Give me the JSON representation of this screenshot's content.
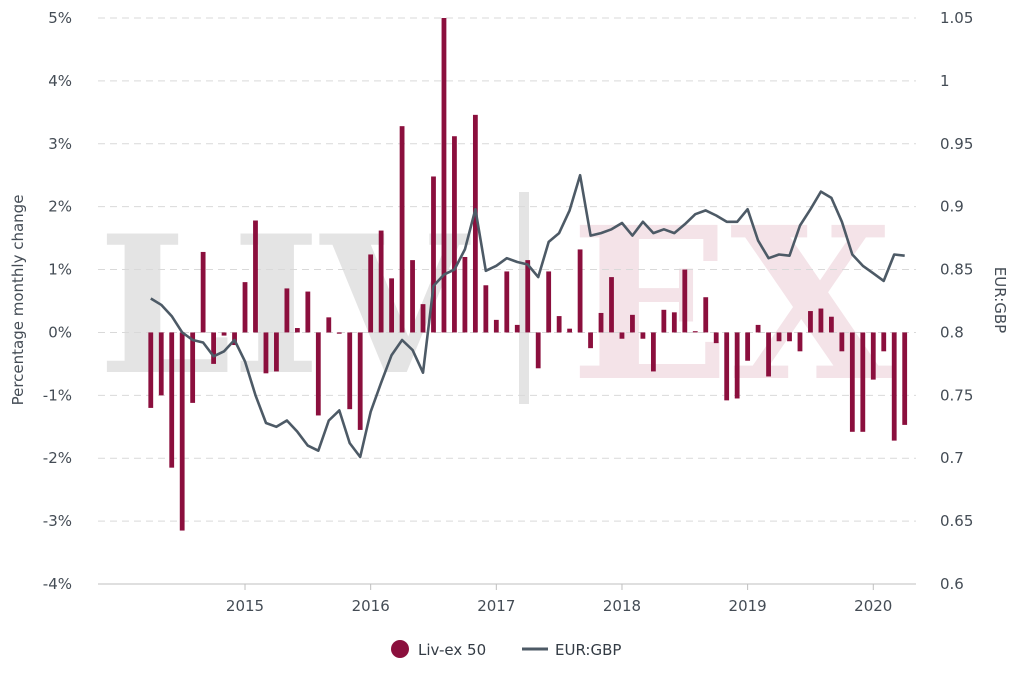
{
  "watermark": {
    "left": "LIV",
    "right": "EX"
  },
  "chart_data": {
    "type": "bar+line",
    "y_left_label": "Percentage monthly change",
    "y_right_label": "EUR:GBP",
    "y_left_ticks": [
      "5%",
      "4%",
      "3%",
      "2%",
      "1%",
      "0%",
      "-1%",
      "-2%",
      "-3%",
      "-4%"
    ],
    "y_left_range": [
      -4,
      5
    ],
    "y_right_ticks": [
      "1.05",
      "1",
      "0.95",
      "0.9",
      "0.85",
      "0.8",
      "0.75",
      "0.7",
      "0.65",
      "0.6"
    ],
    "y_right_range": [
      0.6,
      1.05
    ],
    "x_ticks": [
      {
        "label": "2015",
        "value": 2015.0
      },
      {
        "label": "2016",
        "value": 2016.0
      },
      {
        "label": "2017",
        "value": 2017.0
      },
      {
        "label": "2018",
        "value": 2018.0
      },
      {
        "label": "2019",
        "value": 2019.0
      },
      {
        "label": "2020",
        "value": 2020.0
      }
    ],
    "x_range": [
      2013.83,
      2020.34
    ],
    "grid": "horizontal dashed",
    "legend_position": "bottom-center",
    "colors": {
      "bar": "#8b0f3d",
      "line": "#4d5a66",
      "grid": "#d9d9d9",
      "watermark_left": "#e4e4e4",
      "watermark_right": "#f4e3e8"
    },
    "series": [
      {
        "name": "Liv-ex 50",
        "type": "bar",
        "points": [
          {
            "x": "2014-04",
            "y": -1.2
          },
          {
            "x": "2014-05",
            "y": -1.0
          },
          {
            "x": "2014-06",
            "y": -2.15
          },
          {
            "x": "2014-07",
            "y": -3.15
          },
          {
            "x": "2014-08",
            "y": -1.12
          },
          {
            "x": "2014-09",
            "y": 1.28
          },
          {
            "x": "2014-10",
            "y": -0.5
          },
          {
            "x": "2014-11",
            "y": -0.05
          },
          {
            "x": "2014-12",
            "y": -0.2
          },
          {
            "x": "2015-01",
            "y": 0.8
          },
          {
            "x": "2015-02",
            "y": 1.78
          },
          {
            "x": "2015-03",
            "y": -0.65
          },
          {
            "x": "2015-04",
            "y": -0.62
          },
          {
            "x": "2015-05",
            "y": 0.7
          },
          {
            "x": "2015-06",
            "y": 0.07
          },
          {
            "x": "2015-07",
            "y": 0.65
          },
          {
            "x": "2015-08",
            "y": -1.32
          },
          {
            "x": "2015-09",
            "y": 0.24
          },
          {
            "x": "2015-10",
            "y": -0.02
          },
          {
            "x": "2015-11",
            "y": -1.22
          },
          {
            "x": "2015-12",
            "y": -1.55
          },
          {
            "x": "2016-01",
            "y": 1.24
          },
          {
            "x": "2016-02",
            "y": 1.62
          },
          {
            "x": "2016-03",
            "y": 0.86
          },
          {
            "x": "2016-04",
            "y": 3.28
          },
          {
            "x": "2016-05",
            "y": 1.15
          },
          {
            "x": "2016-06",
            "y": 0.45
          },
          {
            "x": "2016-07",
            "y": 2.48
          },
          {
            "x": "2016-08",
            "y": 5.0
          },
          {
            "x": "2016-09",
            "y": 3.12
          },
          {
            "x": "2016-10",
            "y": 1.2
          },
          {
            "x": "2016-11",
            "y": 3.46
          },
          {
            "x": "2016-12",
            "y": 0.75
          },
          {
            "x": "2017-01",
            "y": 0.2
          },
          {
            "x": "2017-02",
            "y": 0.97
          },
          {
            "x": "2017-03",
            "y": 0.12
          },
          {
            "x": "2017-04",
            "y": 1.15
          },
          {
            "x": "2017-05",
            "y": -0.57
          },
          {
            "x": "2017-06",
            "y": 0.97
          },
          {
            "x": "2017-07",
            "y": 0.26
          },
          {
            "x": "2017-08",
            "y": 0.06
          },
          {
            "x": "2017-09",
            "y": 1.32
          },
          {
            "x": "2017-10",
            "y": -0.25
          },
          {
            "x": "2017-11",
            "y": 0.31
          },
          {
            "x": "2017-12",
            "y": 0.88
          },
          {
            "x": "2018-01",
            "y": -0.1
          },
          {
            "x": "2018-02",
            "y": 0.28
          },
          {
            "x": "2018-03",
            "y": -0.1
          },
          {
            "x": "2018-04",
            "y": -0.62
          },
          {
            "x": "2018-05",
            "y": 0.36
          },
          {
            "x": "2018-06",
            "y": 0.32
          },
          {
            "x": "2018-07",
            "y": 1.0
          },
          {
            "x": "2018-08",
            "y": 0.02
          },
          {
            "x": "2018-09",
            "y": 0.56
          },
          {
            "x": "2018-10",
            "y": -0.17
          },
          {
            "x": "2018-11",
            "y": -1.08
          },
          {
            "x": "2018-12",
            "y": -1.05
          },
          {
            "x": "2019-01",
            "y": -0.45
          },
          {
            "x": "2019-02",
            "y": 0.12
          },
          {
            "x": "2019-03",
            "y": -0.7
          },
          {
            "x": "2019-04",
            "y": -0.14
          },
          {
            "x": "2019-05",
            "y": -0.14
          },
          {
            "x": "2019-06",
            "y": -0.3
          },
          {
            "x": "2019-07",
            "y": 0.34
          },
          {
            "x": "2019-08",
            "y": 0.38
          },
          {
            "x": "2019-09",
            "y": 0.25
          },
          {
            "x": "2019-10",
            "y": -0.3
          },
          {
            "x": "2019-11",
            "y": -1.58
          },
          {
            "x": "2019-12",
            "y": -1.58
          },
          {
            "x": "2020-01",
            "y": -0.75
          },
          {
            "x": "2020-02",
            "y": -0.3
          },
          {
            "x": "2020-03",
            "y": -1.72
          },
          {
            "x": "2020-04",
            "y": -1.47
          }
        ]
      },
      {
        "name": "EUR:GBP",
        "type": "line",
        "axis": "right",
        "points": [
          {
            "x": "2014-04",
            "y": 0.827
          },
          {
            "x": "2014-05",
            "y": 0.822
          },
          {
            "x": "2014-06",
            "y": 0.813
          },
          {
            "x": "2014-07",
            "y": 0.8
          },
          {
            "x": "2014-08",
            "y": 0.794
          },
          {
            "x": "2014-09",
            "y": 0.792
          },
          {
            "x": "2014-10",
            "y": 0.781
          },
          {
            "x": "2014-11",
            "y": 0.785
          },
          {
            "x": "2014-12",
            "y": 0.794
          },
          {
            "x": "2015-01",
            "y": 0.777
          },
          {
            "x": "2015-02",
            "y": 0.75
          },
          {
            "x": "2015-03",
            "y": 0.728
          },
          {
            "x": "2015-04",
            "y": 0.725
          },
          {
            "x": "2015-05",
            "y": 0.73
          },
          {
            "x": "2015-06",
            "y": 0.721
          },
          {
            "x": "2015-07",
            "y": 0.71
          },
          {
            "x": "2015-08",
            "y": 0.706
          },
          {
            "x": "2015-09",
            "y": 0.73
          },
          {
            "x": "2015-10",
            "y": 0.738
          },
          {
            "x": "2015-11",
            "y": 0.712
          },
          {
            "x": "2015-12",
            "y": 0.701
          },
          {
            "x": "2016-01",
            "y": 0.737
          },
          {
            "x": "2016-02",
            "y": 0.76
          },
          {
            "x": "2016-03",
            "y": 0.782
          },
          {
            "x": "2016-04",
            "y": 0.794
          },
          {
            "x": "2016-05",
            "y": 0.786
          },
          {
            "x": "2016-06",
            "y": 0.768
          },
          {
            "x": "2016-07",
            "y": 0.837
          },
          {
            "x": "2016-08",
            "y": 0.846
          },
          {
            "x": "2016-09",
            "y": 0.85
          },
          {
            "x": "2016-10",
            "y": 0.866
          },
          {
            "x": "2016-11",
            "y": 0.898
          },
          {
            "x": "2016-12",
            "y": 0.849
          },
          {
            "x": "2017-01",
            "y": 0.853
          },
          {
            "x": "2017-02",
            "y": 0.859
          },
          {
            "x": "2017-03",
            "y": 0.856
          },
          {
            "x": "2017-04",
            "y": 0.854
          },
          {
            "x": "2017-05",
            "y": 0.844
          },
          {
            "x": "2017-06",
            "y": 0.872
          },
          {
            "x": "2017-07",
            "y": 0.879
          },
          {
            "x": "2017-08",
            "y": 0.897
          },
          {
            "x": "2017-09",
            "y": 0.925
          },
          {
            "x": "2017-10",
            "y": 0.877
          },
          {
            "x": "2017-11",
            "y": 0.879
          },
          {
            "x": "2017-12",
            "y": 0.882
          },
          {
            "x": "2018-01",
            "y": 0.887
          },
          {
            "x": "2018-02",
            "y": 0.877
          },
          {
            "x": "2018-03",
            "y": 0.888
          },
          {
            "x": "2018-04",
            "y": 0.879
          },
          {
            "x": "2018-05",
            "y": 0.882
          },
          {
            "x": "2018-06",
            "y": 0.879
          },
          {
            "x": "2018-07",
            "y": 0.886
          },
          {
            "x": "2018-08",
            "y": 0.894
          },
          {
            "x": "2018-09",
            "y": 0.897
          },
          {
            "x": "2018-10",
            "y": 0.893
          },
          {
            "x": "2018-11",
            "y": 0.888
          },
          {
            "x": "2018-12",
            "y": 0.888
          },
          {
            "x": "2019-01",
            "y": 0.898
          },
          {
            "x": "2019-02",
            "y": 0.873
          },
          {
            "x": "2019-03",
            "y": 0.859
          },
          {
            "x": "2019-04",
            "y": 0.862
          },
          {
            "x": "2019-05",
            "y": 0.861
          },
          {
            "x": "2019-06",
            "y": 0.885
          },
          {
            "x": "2019-07",
            "y": 0.898
          },
          {
            "x": "2019-08",
            "y": 0.912
          },
          {
            "x": "2019-09",
            "y": 0.907
          },
          {
            "x": "2019-10",
            "y": 0.888
          },
          {
            "x": "2019-11",
            "y": 0.862
          },
          {
            "x": "2019-12",
            "y": 0.853
          },
          {
            "x": "2020-01",
            "y": 0.847
          },
          {
            "x": "2020-02",
            "y": 0.841
          },
          {
            "x": "2020-03",
            "y": 0.862
          },
          {
            "x": "2020-04",
            "y": 0.861
          }
        ]
      }
    ]
  }
}
